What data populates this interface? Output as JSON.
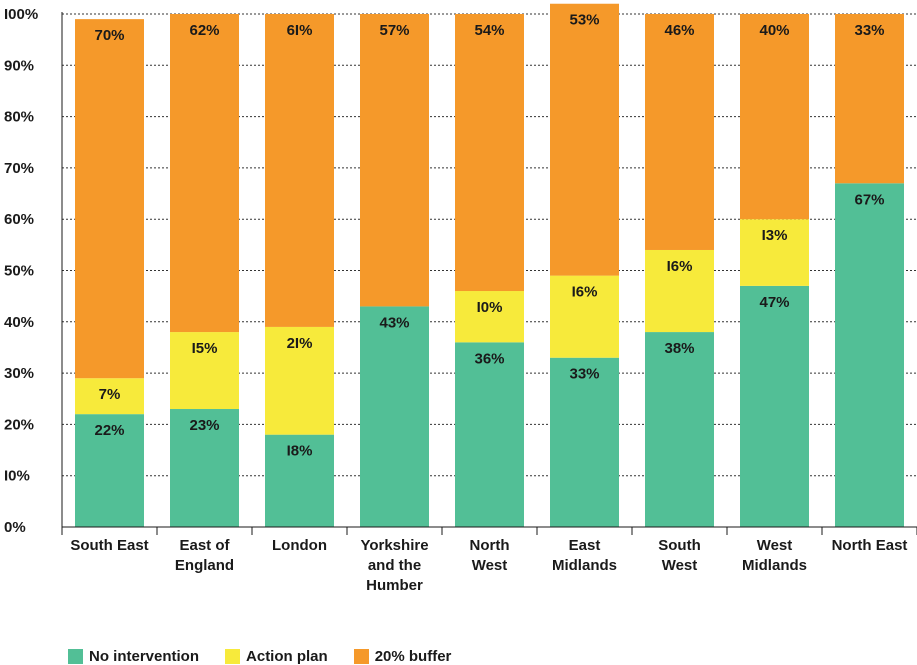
{
  "chart_data": {
    "type": "bar",
    "stacked": true,
    "categories": [
      [
        "South East"
      ],
      [
        "East of",
        "England"
      ],
      [
        "London"
      ],
      [
        "Yorkshire",
        "and the",
        "Humber"
      ],
      [
        "North",
        "West"
      ],
      [
        "East",
        "Midlands"
      ],
      [
        "South",
        "West"
      ],
      [
        "West",
        "Midlands"
      ],
      [
        "North East"
      ]
    ],
    "series": [
      {
        "name": "No intervention",
        "color": "#52bf96",
        "values": [
          22,
          23,
          18,
          43,
          36,
          33,
          38,
          47,
          67
        ],
        "labels": [
          "22%",
          "23%",
          "I8%",
          "43%",
          "36%",
          "33%",
          "38%",
          "47%",
          "67%"
        ]
      },
      {
        "name": "Action plan",
        "color": "#f7ea3b",
        "values": [
          7,
          15,
          21,
          0,
          10,
          16,
          16,
          13,
          0
        ],
        "labels": [
          "7%",
          "I5%",
          "2I%",
          "",
          "I0%",
          "I6%",
          "I6%",
          "I3%",
          ""
        ]
      },
      {
        "name": "20% buffer",
        "color": "#f5992a",
        "values": [
          70,
          62,
          61,
          57,
          54,
          53,
          46,
          40,
          33
        ],
        "labels": [
          "70%",
          "62%",
          "6I%",
          "57%",
          "54%",
          "53%",
          "46%",
          "40%",
          "33%"
        ]
      }
    ],
    "ylim": [
      0,
      100
    ],
    "yticks": [
      "0%",
      "I0%",
      "20%",
      "30%",
      "40%",
      "50%",
      "60%",
      "70%",
      "80%",
      "90%",
      "I00%"
    ],
    "grid": true,
    "legend_position": "bottom-left",
    "title": "",
    "xlabel": "",
    "ylabel": ""
  }
}
